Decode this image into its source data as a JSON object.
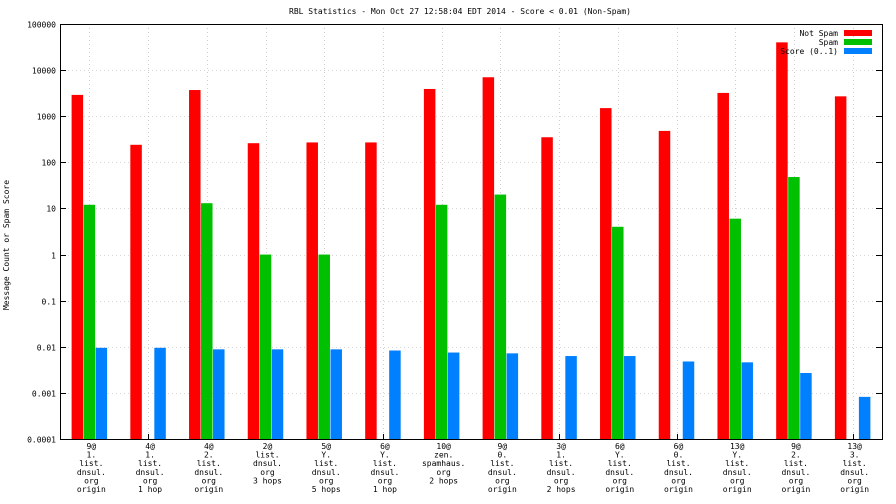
{
  "chart_data": {
    "type": "bar",
    "title": "RBL Statistics - Mon Oct 27 12:58:04 EDT 2014 - Score < 0.01 (Non-Spam)",
    "xlabel": "",
    "ylabel": "Message Count or Spam Score",
    "yscale": "log",
    "ylim": [
      0.0001,
      100000
    ],
    "yticks": [
      {
        "value": 0.0001,
        "label": "0.0001"
      },
      {
        "value": 0.001,
        "label": "0.001"
      },
      {
        "value": 0.01,
        "label": "0.01"
      },
      {
        "value": 0.1,
        "label": "0.1"
      },
      {
        "value": 1,
        "label": "1"
      },
      {
        "value": 10,
        "label": "10"
      },
      {
        "value": 100,
        "label": "100"
      },
      {
        "value": 1000,
        "label": "1000"
      },
      {
        "value": 10000,
        "label": "10000"
      },
      {
        "value": 100000,
        "label": "100000"
      }
    ],
    "grid": true,
    "legend_position": "top-right",
    "categories": [
      [
        "9@",
        "1.",
        "list.",
        "dnsul.",
        "org",
        "origin"
      ],
      [
        "4@",
        "1.",
        "list.",
        "dnsul.",
        "org",
        "1 hop"
      ],
      [
        "4@",
        "2.",
        "list.",
        "dnsul.",
        "org",
        "origin"
      ],
      [
        "2@",
        "list.",
        "dnsul.",
        "org",
        "3 hops"
      ],
      [
        "5@",
        "Y.",
        "list.",
        "dnsul.",
        "org",
        "5 hops"
      ],
      [
        "6@",
        "Y.",
        "list.",
        "dnsul.",
        "org",
        "1 hop"
      ],
      [
        "10@",
        "zen.",
        "spamhaus.",
        "org",
        "2 hops"
      ],
      [
        "9@",
        "0.",
        "list.",
        "dnsul.",
        "org",
        "origin"
      ],
      [
        "3@",
        "1.",
        "list.",
        "dnsul.",
        "org",
        "2 hops"
      ],
      [
        "6@",
        "Y.",
        "list.",
        "dnsul.",
        "org",
        "origin"
      ],
      [
        "6@",
        "0.",
        "list.",
        "dnsul.",
        "org",
        "origin"
      ],
      [
        "13@",
        "Y.",
        "list.",
        "dnsul.",
        "org",
        "origin"
      ],
      [
        "9@",
        "2.",
        "list.",
        "dnsul.",
        "org",
        "origin"
      ],
      [
        "13@",
        "3.",
        "list.",
        "dnsul.",
        "org",
        "origin"
      ]
    ],
    "series": [
      {
        "name": "Not Spam",
        "color": "#ff0000",
        "values": [
          2900,
          240,
          3700,
          260,
          270,
          270,
          3900,
          7000,
          350,
          1500,
          480,
          3200,
          40000,
          2700
        ]
      },
      {
        "name": "Spam",
        "color": "#00c000",
        "values": [
          12,
          null,
          13,
          1,
          1,
          null,
          12,
          20,
          null,
          4,
          null,
          6,
          48,
          null
        ]
      },
      {
        "name": "Score (0..1)",
        "color": "#0080ff",
        "values": [
          0.0095,
          0.0095,
          0.0088,
          0.0088,
          0.0088,
          0.0083,
          0.0075,
          0.0072,
          0.0063,
          0.0063,
          0.0048,
          0.0046,
          0.0027,
          0.00082
        ]
      }
    ]
  }
}
